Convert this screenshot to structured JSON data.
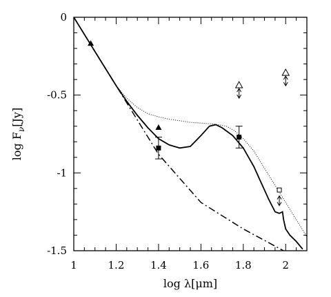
{
  "chart_data": {
    "type": "line",
    "xlabel": "log λ[μm]",
    "ylabel": "log F_ν[Jy]",
    "xlim": [
      1,
      2.1
    ],
    "ylim": [
      -1.5,
      0
    ],
    "grid": false,
    "legend": "none",
    "x_ticks": [
      {
        "value": 1,
        "label": "1"
      },
      {
        "value": 1.2,
        "label": "1.2"
      },
      {
        "value": 1.4,
        "label": "1.4"
      },
      {
        "value": 1.6,
        "label": "1.6"
      },
      {
        "value": 1.8,
        "label": "1.8"
      },
      {
        "value": 2,
        "label": "2"
      }
    ],
    "y_ticks": [
      {
        "value": 0,
        "label": "0"
      },
      {
        "value": -0.5,
        "label": "-0.5"
      },
      {
        "value": -1,
        "label": "-1"
      },
      {
        "value": -1.5,
        "label": "-1.5"
      }
    ],
    "series": [
      {
        "style": "solid",
        "x": [
          1.0,
          1.1,
          1.2,
          1.25,
          1.3,
          1.35,
          1.4,
          1.45,
          1.5,
          1.55,
          1.6,
          1.64,
          1.67,
          1.7,
          1.75,
          1.8,
          1.85,
          1.88,
          1.92,
          1.95,
          1.97,
          1.985,
          1.99,
          2.0,
          2.02,
          2.05,
          2.08
        ],
        "y": [
          0.0,
          -0.22,
          -0.44,
          -0.54,
          -0.63,
          -0.71,
          -0.78,
          -0.82,
          -0.84,
          -0.83,
          -0.76,
          -0.7,
          -0.69,
          -0.71,
          -0.76,
          -0.84,
          -0.96,
          -1.05,
          -1.17,
          -1.25,
          -1.26,
          -1.25,
          -1.3,
          -1.36,
          -1.4,
          -1.44,
          -1.49
        ]
      },
      {
        "style": "dotted",
        "x": [
          1.0,
          1.1,
          1.2,
          1.25,
          1.3,
          1.35,
          1.4,
          1.45,
          1.5,
          1.55,
          1.6,
          1.65,
          1.68,
          1.72,
          1.76,
          1.8,
          1.85,
          1.9,
          1.95,
          2.0,
          2.05,
          2.1
        ],
        "y": [
          0.0,
          -0.22,
          -0.44,
          -0.52,
          -0.58,
          -0.62,
          -0.64,
          -0.655,
          -0.665,
          -0.675,
          -0.68,
          -0.685,
          -0.69,
          -0.7,
          -0.73,
          -0.78,
          -0.86,
          -0.97,
          -1.08,
          -1.19,
          -1.3,
          -1.41
        ]
      },
      {
        "style": "dashed",
        "x": [
          1.0,
          1.2,
          1.4,
          1.6,
          1.8,
          1.99
        ],
        "y": [
          0.0,
          -0.44,
          -0.88,
          -1.19,
          -1.36,
          -1.5
        ]
      }
    ],
    "points": [
      {
        "marker": "filled-triangle",
        "x": 1.08,
        "y": -0.17
      },
      {
        "marker": "filled-triangle",
        "x": 1.4,
        "y": -0.71
      },
      {
        "marker": "filled-square",
        "x": 1.4,
        "y": -0.84,
        "yerr": 0.07
      },
      {
        "marker": "filled-square",
        "x": 1.78,
        "y": -0.77,
        "yerr": 0.07
      },
      {
        "marker": "open-square",
        "x": 1.97,
        "y": -1.11
      }
    ],
    "upper_limits": [
      {
        "marker": "open-triangle",
        "x": 1.78,
        "y": -0.44,
        "arrow_to": -0.52
      },
      {
        "marker": "open-triangle",
        "x": 2.0,
        "y": -0.36,
        "arrow_to": -0.44
      },
      {
        "marker": "none",
        "x": 1.97,
        "y": -1.13,
        "arrow_to": -1.21
      }
    ]
  }
}
